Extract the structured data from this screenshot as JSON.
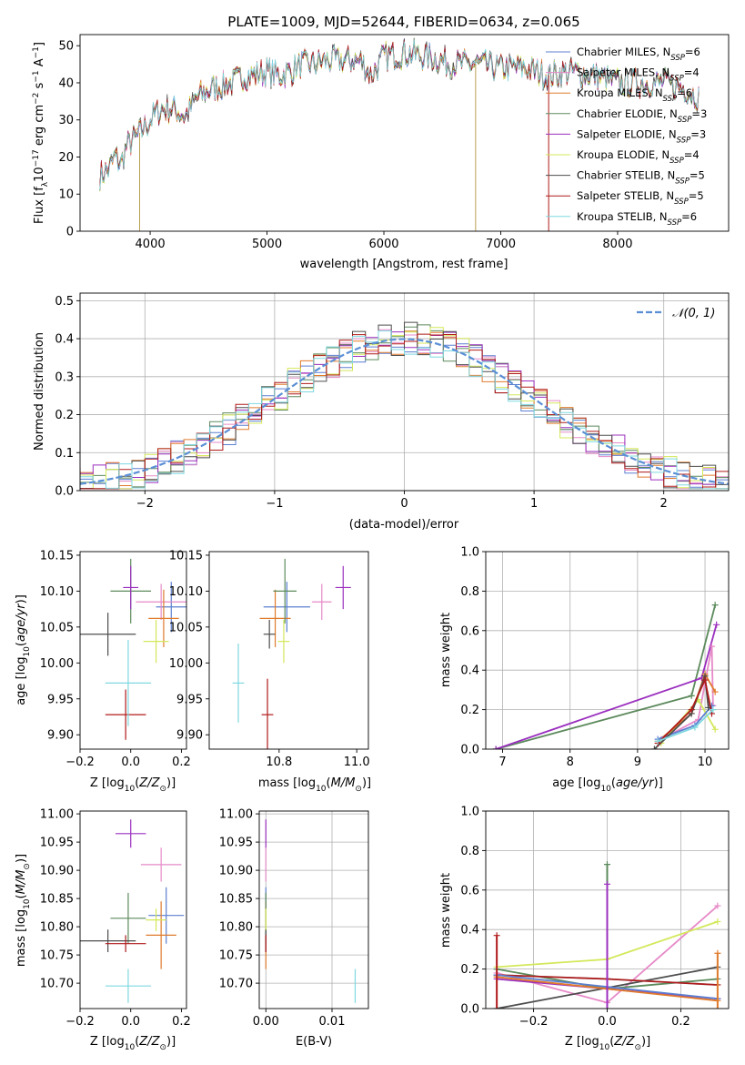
{
  "title": "PLATE=1009, MJD=52644, FIBERID=0634, z=0.065",
  "colors": {
    "Chabrier MILES": "#5b7fd1",
    "Salpeter MILES": "#e68ac8",
    "Kroupa MILES": "#e07b2c",
    "Chabrier ELODIE": "#5c8a5c",
    "Salpeter ELODIE": "#9b2fbf",
    "Kroupa ELODIE": "#d4e85a",
    "Chabrier STELIB": "#4d4d4d",
    "Salpeter STELIB": "#b01a1a",
    "Kroupa STELIB": "#7fd8e0",
    "normal": "#5a8fd6"
  },
  "chart_data": [
    {
      "type": "line",
      "name": "spectrum",
      "xlabel": "wavelength [Angstrom, rest frame]",
      "ylabel": "Flux [fλ10⁻¹⁷ erg cm⁻² s⁻¹ A⁻¹]",
      "xlim": [
        3400,
        8950
      ],
      "ylim": [
        0,
        53
      ],
      "xticks": [
        4000,
        5000,
        6000,
        7000,
        8000
      ],
      "yticks": [
        0,
        10,
        20,
        30,
        40,
        50
      ],
      "legend_position": "top-right",
      "legend": [
        {
          "model": "Chabrier MILES",
          "n": "6"
        },
        {
          "model": "Salpeter MILES",
          "n": "4"
        },
        {
          "model": "Kroupa MILES",
          "n": "6"
        },
        {
          "model": "Chabrier ELODIE",
          "n": "3"
        },
        {
          "model": "Salpeter ELODIE",
          "n": "3"
        },
        {
          "model": "Kroupa ELODIE",
          "n": "4"
        },
        {
          "model": "Chabrier STELIB",
          "n": "5"
        },
        {
          "model": "Salpeter STELIB",
          "n": "5"
        },
        {
          "model": "Kroupa STELIB",
          "n": "6"
        }
      ],
      "continuum": [
        [
          3570,
          15
        ],
        [
          3650,
          17
        ],
        [
          3700,
          20
        ],
        [
          3750,
          18
        ],
        [
          3800,
          23
        ],
        [
          3870,
          25
        ],
        [
          3950,
          28
        ],
        [
          4000,
          30
        ],
        [
          4100,
          33
        ],
        [
          4200,
          33
        ],
        [
          4300,
          31
        ],
        [
          4400,
          36
        ],
        [
          4500,
          38
        ],
        [
          4600,
          39
        ],
        [
          4700,
          40
        ],
        [
          4800,
          42
        ],
        [
          4900,
          42
        ],
        [
          5000,
          43
        ],
        [
          5100,
          42
        ],
        [
          5200,
          43
        ],
        [
          5300,
          45
        ],
        [
          5400,
          45
        ],
        [
          5500,
          46
        ],
        [
          5600,
          46
        ],
        [
          5700,
          46
        ],
        [
          5800,
          46
        ],
        [
          5890,
          42
        ],
        [
          6000,
          47
        ],
        [
          6200,
          48
        ],
        [
          6400,
          47
        ],
        [
          6600,
          45
        ],
        [
          6800,
          45
        ],
        [
          7000,
          44
        ],
        [
          7200,
          44
        ],
        [
          7400,
          42
        ],
        [
          7600,
          43
        ],
        [
          7800,
          42
        ],
        [
          8000,
          40
        ],
        [
          8200,
          40
        ],
        [
          8400,
          40
        ],
        [
          8600,
          38
        ],
        [
          8700,
          36
        ]
      ]
    },
    {
      "type": "bar",
      "name": "residuals",
      "xlabel": "(data-model)/error",
      "ylabel": "Normed distribution",
      "xlim": [
        -2.5,
        2.5
      ],
      "ylim": [
        0,
        0.52
      ],
      "xticks": [
        -2,
        -1,
        0,
        1,
        2
      ],
      "yticks": [
        0.0,
        0.1,
        0.2,
        0.3,
        0.4,
        0.5
      ],
      "legend_position": "top-right",
      "normal_label": "𝒩(0, 1)",
      "bin_width": 0.1,
      "grid": true
    },
    {
      "type": "scatter",
      "name": "age_vs_Z",
      "xlabel": "Z [log₁₀(Z/Z☉)]",
      "ylabel": "age  [log₁₀(age/yr)]",
      "xlim": [
        -0.2,
        0.22
      ],
      "ylim": [
        9.88,
        10.155
      ],
      "xticks": [
        -0.2,
        0.0,
        0.2
      ],
      "yticks": [
        9.9,
        9.95,
        10.0,
        10.05,
        10.1,
        10.15
      ],
      "points": [
        {
          "model": "Chabrier MILES",
          "x": 0.16,
          "y": 10.078,
          "ex": 0.06,
          "ey": 0.035
        },
        {
          "model": "Salpeter MILES",
          "x": 0.12,
          "y": 10.085,
          "ex": 0.1,
          "ey": 0.025
        },
        {
          "model": "Kroupa MILES",
          "x": 0.13,
          "y": 10.062,
          "ex": 0.06,
          "ey": 0.04
        },
        {
          "model": "Chabrier ELODIE",
          "x": 0.0,
          "y": 10.1,
          "ex": 0.08,
          "ey": 0.045
        },
        {
          "model": "Salpeter ELODIE",
          "x": 0.0,
          "y": 10.105,
          "ex": 0.03,
          "ey": 0.03
        },
        {
          "model": "Kroupa ELODIE",
          "x": 0.1,
          "y": 10.03,
          "ex": 0.05,
          "ey": 0.03
        },
        {
          "model": "Chabrier STELIB",
          "x": -0.09,
          "y": 10.04,
          "ex": 0.11,
          "ey": 0.03
        },
        {
          "model": "Salpeter STELIB",
          "x": -0.02,
          "y": 9.928,
          "ex": 0.08,
          "ey": 0.035
        },
        {
          "model": "Kroupa STELIB",
          "x": -0.01,
          "y": 9.972,
          "ex": 0.09,
          "ey": 0.06
        }
      ]
    },
    {
      "type": "scatter",
      "name": "age_vs_mass",
      "xlabel": "mass [log₁₀(M/M☉)]",
      "xlim": [
        10.62,
        11.03
      ],
      "ylim": [
        9.88,
        10.155
      ],
      "xticks": [
        10.8,
        11.0
      ],
      "yticks": [
        9.9,
        9.95,
        10.0,
        10.05,
        10.1,
        10.15
      ],
      "points": [
        {
          "model": "Chabrier MILES",
          "x": 10.82,
          "y": 10.078,
          "ex": 0.06,
          "ey": 0.035
        },
        {
          "model": "Salpeter MILES",
          "x": 10.91,
          "y": 10.085,
          "ex": 0.025,
          "ey": 0.025
        },
        {
          "model": "Kroupa MILES",
          "x": 10.79,
          "y": 10.062,
          "ex": 0.04,
          "ey": 0.04
        },
        {
          "model": "Chabrier ELODIE",
          "x": 10.815,
          "y": 10.1,
          "ex": 0.03,
          "ey": 0.045
        },
        {
          "model": "Salpeter ELODIE",
          "x": 10.965,
          "y": 10.105,
          "ex": 0.02,
          "ey": 0.03
        },
        {
          "model": "Kroupa ELODIE",
          "x": 10.812,
          "y": 10.03,
          "ex": 0.015,
          "ey": 0.03
        },
        {
          "model": "Chabrier STELIB",
          "x": 10.775,
          "y": 10.04,
          "ex": 0.015,
          "ey": 0.02
        },
        {
          "model": "Salpeter STELIB",
          "x": 10.77,
          "y": 9.928,
          "ex": 0.015,
          "ey": 0.05
        },
        {
          "model": "Kroupa STELIB",
          "x": 10.695,
          "y": 9.972,
          "ex": 0.015,
          "ey": 0.055
        }
      ]
    },
    {
      "type": "line",
      "name": "mass_weight_vs_age",
      "xlabel": "age  [log₁₀(age/yr)]",
      "ylabel": "mass weight",
      "xlim": [
        6.75,
        10.35
      ],
      "ylim": [
        0,
        1.0
      ],
      "xticks": [
        7,
        8,
        9,
        10
      ],
      "yticks": [
        0.0,
        0.2,
        0.4,
        0.6,
        0.8,
        1.0
      ],
      "grid": true,
      "series": [
        {
          "model": "Chabrier ELODIE",
          "points": [
            [
              6.9,
              0.0
            ],
            [
              9.8,
              0.27
            ],
            [
              10.15,
              0.73
            ]
          ]
        },
        {
          "model": "Salpeter ELODIE",
          "points": [
            [
              6.9,
              0.0
            ],
            [
              9.95,
              0.36
            ],
            [
              10.17,
              0.63
            ]
          ]
        },
        {
          "model": "Salpeter MILES",
          "points": [
            [
              9.35,
              0.05
            ],
            [
              9.9,
              0.15
            ],
            [
              10.1,
              0.52
            ],
            [
              10.12,
              0.22
            ]
          ]
        },
        {
          "model": "Kroupa ELODIE",
          "points": [
            [
              9.35,
              0.03
            ],
            [
              9.9,
              0.25
            ],
            [
              10.15,
              0.1
            ]
          ]
        },
        {
          "model": "Kroupa MILES",
          "points": [
            [
              9.3,
              0.04
            ],
            [
              9.8,
              0.18
            ],
            [
              10.0,
              0.38
            ],
            [
              10.15,
              0.29
            ]
          ]
        },
        {
          "model": "Chabrier MILES",
          "points": [
            [
              9.3,
              0.05
            ],
            [
              9.85,
              0.12
            ],
            [
              10.1,
              0.22
            ]
          ]
        },
        {
          "model": "Chabrier STELIB",
          "points": [
            [
              9.25,
              0.0
            ],
            [
              9.8,
              0.18
            ],
            [
              10.0,
              0.37
            ],
            [
              10.05,
              0.21
            ]
          ]
        },
        {
          "model": "Salpeter STELIB",
          "points": [
            [
              9.3,
              0.03
            ],
            [
              9.8,
              0.2
            ],
            [
              10.0,
              0.35
            ],
            [
              10.1,
              0.18
            ]
          ]
        },
        {
          "model": "Kroupa STELIB",
          "points": [
            [
              9.3,
              0.04
            ],
            [
              9.85,
              0.11
            ],
            [
              10.12,
              0.2
            ]
          ]
        }
      ]
    },
    {
      "type": "scatter",
      "name": "mass_vs_Z",
      "xlabel": "Z [log₁₀(Z/Z☉)]",
      "ylabel": "mass [log₁₀(M/M☉)]",
      "xlim": [
        -0.2,
        0.22
      ],
      "ylim": [
        10.655,
        11.005
      ],
      "xticks": [
        -0.2,
        0.0,
        0.2
      ],
      "yticks": [
        10.7,
        10.75,
        10.8,
        10.85,
        10.9,
        10.95,
        11.0
      ],
      "points": [
        {
          "model": "Chabrier MILES",
          "x": 0.14,
          "y": 10.82,
          "ex": 0.07,
          "ey": 0.05
        },
        {
          "model": "Salpeter MILES",
          "x": 0.12,
          "y": 10.91,
          "ex": 0.08,
          "ey": 0.03
        },
        {
          "model": "Kroupa MILES",
          "x": 0.12,
          "y": 10.785,
          "ex": 0.06,
          "ey": 0.06
        },
        {
          "model": "Chabrier ELODIE",
          "x": -0.01,
          "y": 10.815,
          "ex": 0.07,
          "ey": 0.045
        },
        {
          "model": "Salpeter ELODIE",
          "x": 0.0,
          "y": 10.965,
          "ex": 0.06,
          "ey": 0.025
        },
        {
          "model": "Kroupa ELODIE",
          "x": 0.1,
          "y": 10.812,
          "ex": 0.04,
          "ey": 0.02
        },
        {
          "model": "Chabrier STELIB",
          "x": -0.09,
          "y": 10.775,
          "ex": 0.11,
          "ey": 0.02
        },
        {
          "model": "Salpeter STELIB",
          "x": -0.02,
          "y": 10.77,
          "ex": 0.08,
          "ey": 0.015
        },
        {
          "model": "Kroupa STELIB",
          "x": -0.01,
          "y": 10.695,
          "ex": 0.09,
          "ey": 0.03
        }
      ]
    },
    {
      "type": "scatter",
      "name": "mass_vs_ebv",
      "xlabel": "E(B-V)",
      "xlim": [
        -0.001,
        0.0155
      ],
      "ylim": [
        10.655,
        11.005
      ],
      "xticks": [
        0.0,
        0.01
      ],
      "yticks": [
        10.7,
        10.75,
        10.8,
        10.85,
        10.9,
        10.95,
        11.0
      ],
      "grid": true,
      "points": [
        {
          "model": "Chabrier MILES",
          "x": 0.0,
          "y": 10.82,
          "ex": 0.0,
          "ey": 0.05
        },
        {
          "model": "Salpeter MILES",
          "x": 0.0,
          "y": 10.91,
          "ex": 0.0,
          "ey": 0.03
        },
        {
          "model": "Kroupa MILES",
          "x": 0.0,
          "y": 10.785,
          "ex": 0.0,
          "ey": 0.06
        },
        {
          "model": "Chabrier ELODIE",
          "x": 0.0,
          "y": 10.815,
          "ex": 0.0,
          "ey": 0.045
        },
        {
          "model": "Salpeter ELODIE",
          "x": 0.0,
          "y": 10.965,
          "ex": 0.0,
          "ey": 0.025
        },
        {
          "model": "Kroupa ELODIE",
          "x": 0.0,
          "y": 10.812,
          "ex": 0.0,
          "ey": 0.02
        },
        {
          "model": "Chabrier STELIB",
          "x": 0.0,
          "y": 10.775,
          "ex": 0.0,
          "ey": 0.02
        },
        {
          "model": "Salpeter STELIB",
          "x": 0.0,
          "y": 10.77,
          "ex": 0.0,
          "ey": 0.015
        },
        {
          "model": "Kroupa STELIB",
          "x": 0.0135,
          "y": 10.695,
          "ex": 0.0,
          "ey": 0.03
        }
      ]
    },
    {
      "type": "line",
      "name": "mass_weight_vs_Z",
      "xlabel": "Z [log₁₀(Z/Z☉)]",
      "ylabel": "mass weight",
      "xlim": [
        -0.33,
        0.33
      ],
      "ylim": [
        0,
        1.0
      ],
      "xticks": [
        -0.2,
        0.0,
        0.2
      ],
      "yticks": [
        0.0,
        0.2,
        0.4,
        0.6,
        0.8,
        1.0
      ],
      "grid": true,
      "series": [
        {
          "model": "Salpeter MILES",
          "points": [
            [
              -0.3,
              0.18
            ],
            [
              0.0,
              0.03
            ],
            [
              0.3,
              0.52
            ]
          ]
        },
        {
          "model": "Kroupa ELODIE",
          "points": [
            [
              -0.3,
              0.21
            ],
            [
              0.0,
              0.25
            ],
            [
              0.3,
              0.44
            ]
          ]
        },
        {
          "model": "Chabrier STELIB",
          "points": [
            [
              -0.3,
              0.0
            ],
            [
              0.3,
              0.21
            ]
          ]
        },
        {
          "model": "Chabrier ELODIE",
          "points": [
            [
              -0.3,
              0.2
            ],
            [
              0.0,
              0.1
            ],
            [
              0.3,
              0.15
            ]
          ]
        },
        {
          "model": "Kroupa STELIB",
          "points": [
            [
              -0.3,
              0.17
            ],
            [
              0.0,
              0.15
            ],
            [
              0.3,
              0.12
            ]
          ]
        },
        {
          "model": "Salpeter STELIB",
          "points": [
            [
              -0.3,
              0.17
            ],
            [
              0.0,
              0.15
            ],
            [
              0.3,
              0.12
            ]
          ]
        },
        {
          "model": "Salpeter ELODIE",
          "points": [
            [
              -0.3,
              0.15
            ],
            [
              0.0,
              0.1
            ],
            [
              0.3,
              0.05
            ]
          ]
        },
        {
          "model": "Chabrier MILES",
          "points": [
            [
              -0.3,
              0.17
            ],
            [
              0.0,
              0.11
            ],
            [
              0.3,
              0.05
            ]
          ]
        },
        {
          "model": "Kroupa MILES",
          "points": [
            [
              -0.3,
              0.16
            ],
            [
              0.0,
              0.1
            ],
            [
              0.3,
              0.04
            ]
          ]
        }
      ],
      "stacks": [
        {
          "model": "Salpeter STELIB",
          "x": -0.3,
          "y": 0.37
        },
        {
          "model": "Chabrier ELODIE",
          "x": 0.0,
          "y": 0.73
        },
        {
          "model": "Salpeter ELODIE",
          "x": 0.0,
          "y": 0.63
        },
        {
          "model": "Kroupa MILES",
          "x": 0.3,
          "y": 0.28
        }
      ]
    }
  ]
}
